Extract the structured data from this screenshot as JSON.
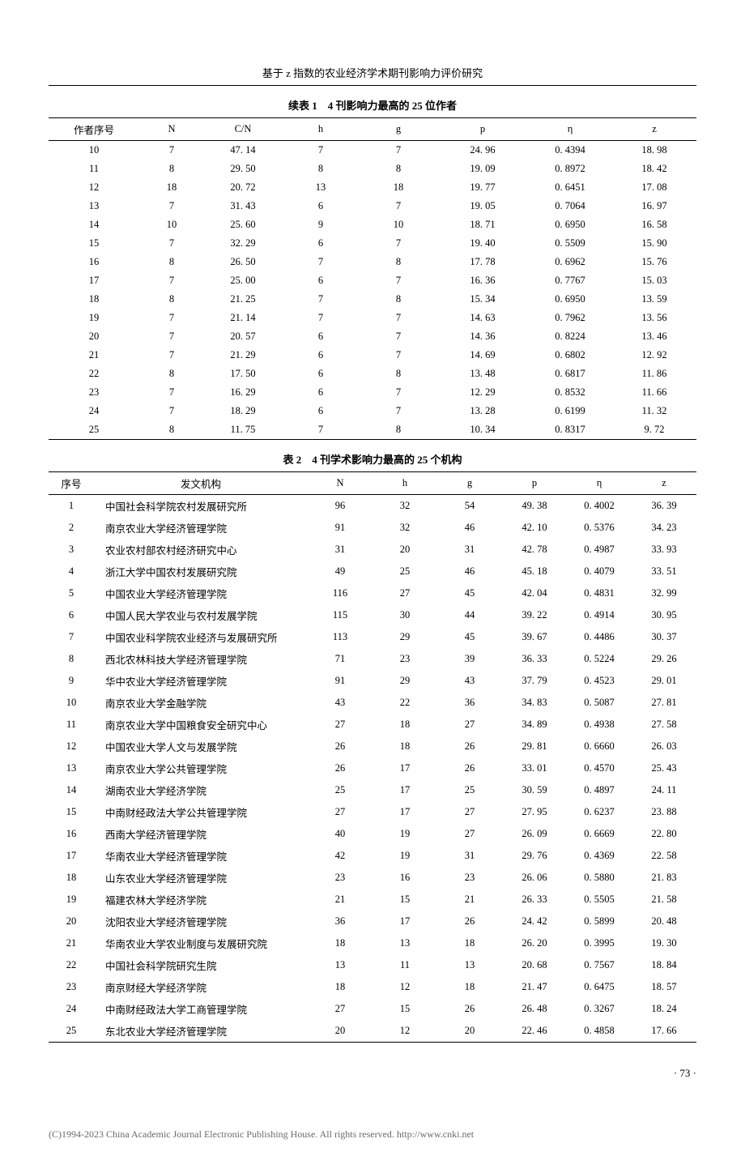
{
  "paper_title": "基于 z 指数的农业经济学术期刊影响力评价研究",
  "table1": {
    "caption": "续表 1　4 刊影响力最高的 25 位作者",
    "headers": [
      "作者序号",
      "N",
      "C/N",
      "h",
      "g",
      "p",
      "η",
      "z"
    ],
    "rows": [
      [
        "10",
        "7",
        "47. 14",
        "7",
        "7",
        "24. 96",
        "0. 4394",
        "18. 98"
      ],
      [
        "11",
        "8",
        "29. 50",
        "8",
        "8",
        "19. 09",
        "0. 8972",
        "18. 42"
      ],
      [
        "12",
        "18",
        "20. 72",
        "13",
        "18",
        "19. 77",
        "0. 6451",
        "17. 08"
      ],
      [
        "13",
        "7",
        "31. 43",
        "6",
        "7",
        "19. 05",
        "0. 7064",
        "16. 97"
      ],
      [
        "14",
        "10",
        "25. 60",
        "9",
        "10",
        "18. 71",
        "0. 6950",
        "16. 58"
      ],
      [
        "15",
        "7",
        "32. 29",
        "6",
        "7",
        "19. 40",
        "0. 5509",
        "15. 90"
      ],
      [
        "16",
        "8",
        "26. 50",
        "7",
        "8",
        "17. 78",
        "0. 6962",
        "15. 76"
      ],
      [
        "17",
        "7",
        "25. 00",
        "6",
        "7",
        "16. 36",
        "0. 7767",
        "15. 03"
      ],
      [
        "18",
        "8",
        "21. 25",
        "7",
        "8",
        "15. 34",
        "0. 6950",
        "13. 59"
      ],
      [
        "19",
        "7",
        "21. 14",
        "7",
        "7",
        "14. 63",
        "0. 7962",
        "13. 56"
      ],
      [
        "20",
        "7",
        "20. 57",
        "6",
        "7",
        "14. 36",
        "0. 8224",
        "13. 46"
      ],
      [
        "21",
        "7",
        "21. 29",
        "6",
        "7",
        "14. 69",
        "0. 6802",
        "12. 92"
      ],
      [
        "22",
        "8",
        "17. 50",
        "6",
        "8",
        "13. 48",
        "0. 6817",
        "11. 86"
      ],
      [
        "23",
        "7",
        "16. 29",
        "6",
        "7",
        "12. 29",
        "0. 8532",
        "11. 66"
      ],
      [
        "24",
        "7",
        "18. 29",
        "6",
        "7",
        "13. 28",
        "0. 6199",
        "11. 32"
      ],
      [
        "25",
        "8",
        "11. 75",
        "7",
        "8",
        "10. 34",
        "0. 8317",
        "9. 72"
      ]
    ]
  },
  "table2": {
    "caption": "表 2　4 刊学术影响力最高的 25 个机构",
    "headers": [
      "序号",
      "发文机构",
      "N",
      "h",
      "g",
      "p",
      "η",
      "z"
    ],
    "rows": [
      [
        "1",
        "中国社会科学院农村发展研究所",
        "96",
        "32",
        "54",
        "49. 38",
        "0. 4002",
        "36. 39"
      ],
      [
        "2",
        "南京农业大学经济管理学院",
        "91",
        "32",
        "46",
        "42. 10",
        "0. 5376",
        "34. 23"
      ],
      [
        "3",
        "农业农村部农村经济研究中心",
        "31",
        "20",
        "31",
        "42. 78",
        "0. 4987",
        "33. 93"
      ],
      [
        "4",
        "浙江大学中国农村发展研究院",
        "49",
        "25",
        "46",
        "45. 18",
        "0. 4079",
        "33. 51"
      ],
      [
        "5",
        "中国农业大学经济管理学院",
        "116",
        "27",
        "45",
        "42. 04",
        "0. 4831",
        "32. 99"
      ],
      [
        "6",
        "中国人民大学农业与农村发展学院",
        "115",
        "30",
        "44",
        "39. 22",
        "0. 4914",
        "30. 95"
      ],
      [
        "7",
        "中国农业科学院农业经济与发展研究所",
        "113",
        "29",
        "45",
        "39. 67",
        "0. 4486",
        "30. 37"
      ],
      [
        "8",
        "西北农林科技大学经济管理学院",
        "71",
        "23",
        "39",
        "36. 33",
        "0. 5224",
        "29. 26"
      ],
      [
        "9",
        "华中农业大学经济管理学院",
        "91",
        "29",
        "43",
        "37. 79",
        "0. 4523",
        "29. 01"
      ],
      [
        "10",
        "南京农业大学金融学院",
        "43",
        "22",
        "36",
        "34. 83",
        "0. 5087",
        "27. 81"
      ],
      [
        "11",
        "南京农业大学中国粮食安全研究中心",
        "27",
        "18",
        "27",
        "34. 89",
        "0. 4938",
        "27. 58"
      ],
      [
        "12",
        "中国农业大学人文与发展学院",
        "26",
        "18",
        "26",
        "29. 81",
        "0. 6660",
        "26. 03"
      ],
      [
        "13",
        "南京农业大学公共管理学院",
        "26",
        "17",
        "26",
        "33. 01",
        "0. 4570",
        "25. 43"
      ],
      [
        "14",
        "湖南农业大学经济学院",
        "25",
        "17",
        "25",
        "30. 59",
        "0. 4897",
        "24. 11"
      ],
      [
        "15",
        "中南财经政法大学公共管理学院",
        "27",
        "17",
        "27",
        "27. 95",
        "0. 6237",
        "23. 88"
      ],
      [
        "16",
        "西南大学经济管理学院",
        "40",
        "19",
        "27",
        "26. 09",
        "0. 6669",
        "22. 80"
      ],
      [
        "17",
        "华南农业大学经济管理学院",
        "42",
        "19",
        "31",
        "29. 76",
        "0. 4369",
        "22. 58"
      ],
      [
        "18",
        "山东农业大学经济管理学院",
        "23",
        "16",
        "23",
        "26. 06",
        "0. 5880",
        "21. 83"
      ],
      [
        "19",
        "福建农林大学经济学院",
        "21",
        "15",
        "21",
        "26. 33",
        "0. 5505",
        "21. 58"
      ],
      [
        "20",
        "沈阳农业大学经济管理学院",
        "36",
        "17",
        "26",
        "24. 42",
        "0. 5899",
        "20. 48"
      ],
      [
        "21",
        "华南农业大学农业制度与发展研究院",
        "18",
        "13",
        "18",
        "26. 20",
        "0. 3995",
        "19. 30"
      ],
      [
        "22",
        "中国社会科学院研究生院",
        "13",
        "11",
        "13",
        "20. 68",
        "0. 7567",
        "18. 84"
      ],
      [
        "23",
        "南京财经大学经济学院",
        "18",
        "12",
        "18",
        "21. 47",
        "0. 6475",
        "18. 57"
      ],
      [
        "24",
        "中南财经政法大学工商管理学院",
        "27",
        "15",
        "26",
        "26. 48",
        "0. 3267",
        "18. 24"
      ],
      [
        "25",
        "东北农业大学经济管理学院",
        "20",
        "12",
        "20",
        "22. 46",
        "0. 4858",
        "17. 66"
      ]
    ]
  },
  "page_number": "· 73 ·",
  "footer_text": "(C)1994-2023 China Academic Journal Electronic Publishing House. All rights reserved.    http://www.cnki.net"
}
